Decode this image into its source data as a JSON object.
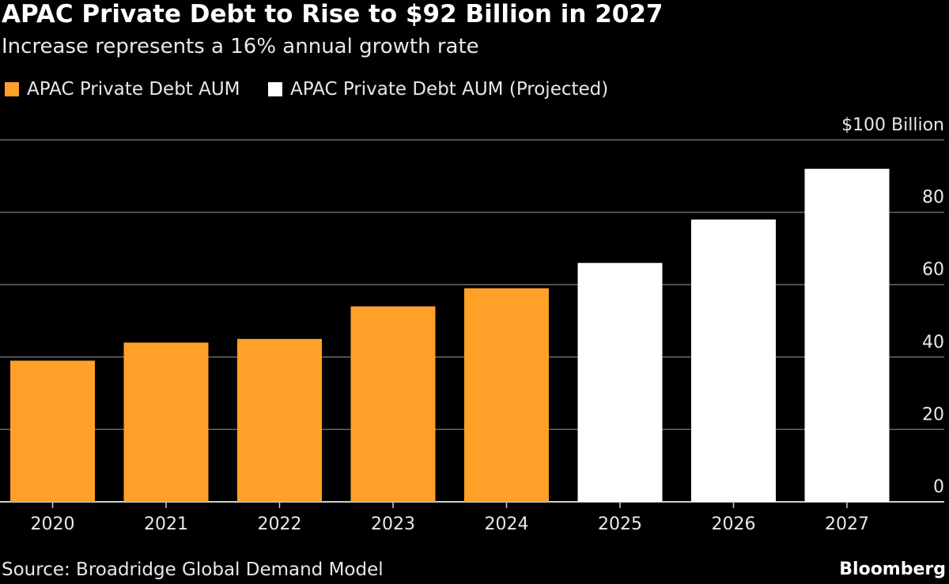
{
  "chart_data": {
    "type": "bar",
    "title": "APAC Private Debt to Rise to $92 Billion in 2027",
    "subtitle": "Increase represents a 16% annual growth rate",
    "categories": [
      "2020",
      "2021",
      "2022",
      "2023",
      "2024",
      "2025",
      "2026",
      "2027"
    ],
    "series": [
      {
        "name": "APAC Private Debt AUM",
        "color": "#ffa028",
        "values": [
          39,
          44,
          45,
          54,
          59,
          null,
          null,
          null
        ]
      },
      {
        "name": "APAC Private Debt AUM (Projected)",
        "color": "#ffffff",
        "values": [
          null,
          null,
          null,
          null,
          null,
          66,
          78,
          92
        ]
      }
    ],
    "ylim": [
      0,
      100
    ],
    "yticks": [
      0,
      20,
      40,
      60,
      80,
      100
    ],
    "ytick_labels": [
      "0",
      "20",
      "40",
      "60",
      "80",
      "$100 Billion"
    ],
    "y_axis_side": "right",
    "grid": true,
    "legend_placement": "top-left",
    "source": "Source: Broadridge Global Demand Model",
    "brand": "Bloomberg"
  }
}
